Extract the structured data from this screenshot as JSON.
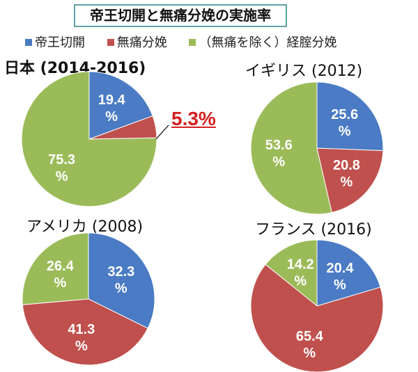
{
  "title": "帝王切開と無痛分娩の実施率",
  "legend": [
    {
      "label": "帝王切開",
      "color": "#4a7bc4"
    },
    {
      "label": "無痛分娩",
      "color": "#c0504d"
    },
    {
      "label": "（無痛を除く）経腟分娩",
      "color": "#9bbb59"
    }
  ],
  "chart_data": [
    {
      "type": "pie",
      "title": "日本 (2014-2016)",
      "categories": [
        "帝王切開",
        "無痛分娩",
        "（無痛を除く）経腟分娩"
      ],
      "values": [
        19.4,
        5.3,
        75.3
      ],
      "labels": [
        "19.4\n%",
        "",
        "75.3\n%"
      ],
      "annotation": "5.3%"
    },
    {
      "type": "pie",
      "title": "イギリス (2012)",
      "categories": [
        "帝王切開",
        "無痛分娩",
        "（無痛を除く）経腟分娩"
      ],
      "values": [
        25.6,
        20.8,
        53.6
      ],
      "labels": [
        "25.6\n%",
        "20.8\n%",
        "53.6\n%"
      ]
    },
    {
      "type": "pie",
      "title": "アメリカ (2008)",
      "categories": [
        "帝王切開",
        "無痛分娩",
        "（無痛を除く）経腟分娩"
      ],
      "values": [
        32.3,
        41.3,
        26.4
      ],
      "labels": [
        "32.3\n%",
        "41.3\n%",
        "26.4\n%"
      ]
    },
    {
      "type": "pie",
      "title": "フランス (2016)",
      "categories": [
        "帝王切開",
        "無痛分娩",
        "（無痛を除く）経腟分娩"
      ],
      "values": [
        20.4,
        65.4,
        14.2
      ],
      "labels": [
        "20.4\n%",
        "65.4\n%",
        "14.2\n%"
      ]
    }
  ]
}
